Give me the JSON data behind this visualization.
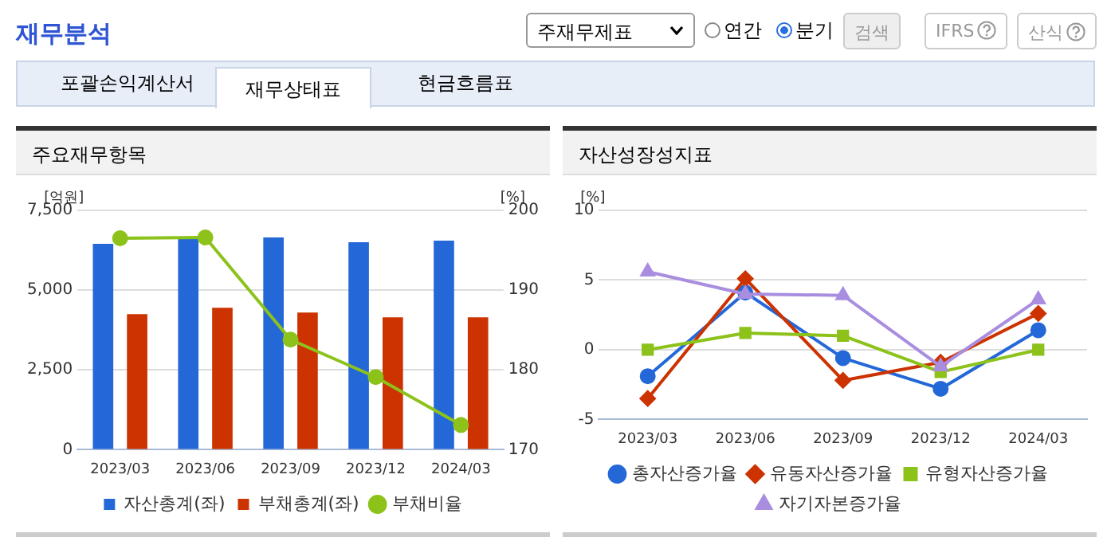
{
  "chart_data": [
    {
      "type": "bar",
      "title": "주요재무항목",
      "ylabel": "[억원]",
      "y2label": "[%]",
      "categories": [
        "2023/03",
        "2023/06",
        "2023/09",
        "2023/12",
        "2024/03"
      ],
      "series": [
        {
          "name": "자산총계(좌)",
          "color": "#2468d8",
          "values": [
            6450,
            6650,
            6650,
            6500,
            6550
          ]
        },
        {
          "name": "부채총계(좌)",
          "color": "#cc3300",
          "values": [
            4250,
            4450,
            4300,
            4150,
            4150
          ]
        },
        {
          "name": "부채비율",
          "type": "line",
          "axis": "y2",
          "color": "#8cc21a",
          "marker": "circle",
          "values": [
            196.5,
            196.6,
            183.8,
            179.1,
            173.1
          ]
        }
      ],
      "ylim": [
        0,
        7500
      ],
      "yticks": [
        0,
        {
          "value": 2500,
          "label": "2,500"
        },
        {
          "value": 5000,
          "label": "5,000"
        },
        {
          "value": 7500,
          "label": "7,500"
        }
      ],
      "y2lim": [
        170,
        200
      ],
      "y2ticks": [
        170,
        180,
        190,
        200
      ],
      "grid": "y",
      "legend": "bottom",
      "annotations": [
        "재무분석",
        "주재무제표",
        "연간",
        "분기",
        "검색",
        "IFRS",
        "산식",
        "포괄손익계산서",
        "재무상태표",
        "현금흐름표"
      ]
    },
    {
      "type": "line",
      "title": "자산성장성지표",
      "ylabel": "[%]",
      "categories": [
        "2023/03",
        "2023/06",
        "2023/09",
        "2023/12",
        "2024/03"
      ],
      "series": [
        {
          "name": "총자산증가율",
          "color": "#2468d8",
          "marker": "circle",
          "values": [
            -1.9,
            4.1,
            -0.6,
            -2.8,
            1.4
          ]
        },
        {
          "name": "유동자산증가율",
          "color": "#cc3300",
          "marker": "diamond",
          "values": [
            -3.5,
            5.1,
            -2.2,
            -0.9,
            2.6
          ]
        },
        {
          "name": "유형자산증가율",
          "color": "#8cc21a",
          "marker": "square",
          "values": [
            0.0,
            1.2,
            1.0,
            -1.6,
            0.0
          ]
        },
        {
          "name": "자기자본증가율",
          "color": "#a98ee0",
          "marker": "triangle",
          "values": [
            5.6,
            4.0,
            3.9,
            -1.2,
            3.6
          ]
        }
      ],
      "ylim": [
        -5,
        10
      ],
      "yticks": [
        -5,
        0,
        5,
        10
      ],
      "grid": "y",
      "legend": "bottom"
    }
  ]
}
